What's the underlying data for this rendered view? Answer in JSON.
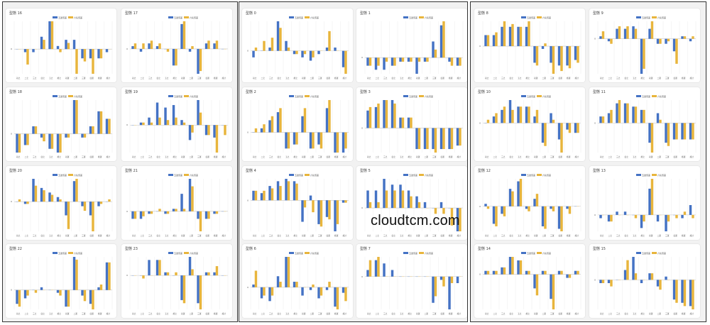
{
  "watermark": "cloudtcm.com",
  "colors": {
    "series1": "#4472c4",
    "series2": "#e8b53c",
    "grid": "#ececec",
    "axis": "#c8c8c8",
    "text": "#555555"
  },
  "legend": [
    "五運值差",
    "六氣值差"
  ],
  "categories": [
    "初之",
    "二之",
    "三之",
    "四之",
    "五之",
    "終之",
    "初運",
    "二運",
    "三運",
    "四運",
    "終運",
    "總計"
  ],
  "chart_data": [
    {
      "type": "bar",
      "title": "型態 16",
      "legend": [
        "五運值差",
        "六氣值差"
      ],
      "series": [
        {
          "name": "五運值差",
          "values": [
            0,
            -1,
            -1,
            4,
            9,
            1,
            3,
            3,
            -3,
            -3,
            -3,
            -1
          ]
        },
        {
          "name": "六氣值差",
          "values": [
            0,
            -5,
            0,
            3,
            9,
            -1,
            2,
            -8,
            -4,
            -8,
            -3,
            0
          ]
        }
      ]
    },
    {
      "type": "bar",
      "title": "型態 17",
      "legend": [
        "五運值差",
        "六氣值差"
      ],
      "series": [
        {
          "name": "五運值差",
          "values": [
            1,
            -1,
            2,
            1,
            0,
            -6,
            9,
            -1,
            -9,
            2,
            2,
            0
          ]
        },
        {
          "name": "六氣值差",
          "values": [
            2,
            2,
            3,
            2,
            -1,
            -6,
            10,
            1,
            -8,
            3,
            3,
            0
          ]
        }
      ]
    },
    {
      "type": "bar",
      "title": "型態 18",
      "legend": [
        "五運值差",
        "六氣值差"
      ],
      "series": [
        {
          "name": "五運值差",
          "values": [
            -5,
            -3,
            2,
            -1,
            -4,
            -5,
            -1,
            9,
            -1,
            2,
            6,
            4
          ]
        },
        {
          "name": "六氣值差",
          "values": [
            -5,
            -3,
            2,
            -2,
            -4,
            -5,
            -1,
            9,
            -1,
            2,
            6,
            4
          ]
        }
      ]
    },
    {
      "type": "bar",
      "title": "型態 19",
      "legend": [
        "五運值差",
        "六氣值差"
      ],
      "series": [
        {
          "name": "五運值差",
          "values": [
            0,
            1,
            3,
            9,
            7,
            8,
            2,
            -6,
            10,
            -4,
            -5,
            0
          ]
        },
        {
          "name": "六氣值差",
          "values": [
            0,
            1,
            1,
            3,
            2,
            3,
            1,
            -3,
            5,
            -4,
            -11,
            -4
          ]
        }
      ]
    },
    {
      "type": "bar",
      "title": "型態 20",
      "legend": [
        "五運值差",
        "六氣值差"
      ],
      "series": [
        {
          "name": "五運值差",
          "values": [
            0,
            -1,
            10,
            6,
            4,
            2,
            -6,
            9,
            -2,
            -6,
            -2,
            0
          ]
        },
        {
          "name": "六氣值差",
          "values": [
            1,
            -1,
            7,
            5,
            3,
            1,
            -12,
            10,
            -4,
            -13,
            -1,
            1
          ]
        }
      ]
    },
    {
      "type": "bar",
      "title": "型態 21",
      "legend": [
        "五運值差",
        "六氣值差"
      ],
      "series": [
        {
          "name": "五運值差",
          "values": [
            -3,
            -3,
            -1,
            0,
            -1,
            1,
            7,
            13,
            -3,
            -3,
            -1,
            0
          ]
        },
        {
          "name": "六氣值差",
          "values": [
            -3,
            -2,
            -1,
            1,
            -1,
            1,
            1,
            10,
            -8,
            -3,
            -1,
            0
          ]
        }
      ]
    },
    {
      "type": "bar",
      "title": "型態 22",
      "legend": [
        "五運值差",
        "六氣值差"
      ],
      "series": [
        {
          "name": "五運值差",
          "values": [
            -5,
            -3,
            0,
            1,
            0,
            -1,
            -6,
            12,
            -2,
            -5,
            1,
            10
          ]
        },
        {
          "name": "六氣值差",
          "values": [
            -6,
            -2,
            -1,
            0,
            0,
            -2,
            -6,
            11,
            -4,
            -7,
            2,
            10
          ]
        }
      ]
    },
    {
      "type": "bar",
      "title": "型態 23",
      "legend": [
        "五運值差",
        "六氣值差"
      ],
      "series": [
        {
          "name": "五運值差",
          "values": [
            0,
            0,
            5,
            5,
            1,
            0,
            -8,
            6,
            -9,
            1,
            1,
            0
          ]
        },
        {
          "name": "六氣值差",
          "values": [
            0,
            -1,
            0,
            5,
            1,
            1,
            -9,
            2,
            -11,
            1,
            3,
            0
          ]
        }
      ]
    },
    {
      "type": "bar",
      "title": "型態 0",
      "legend": [
        "五運值差",
        "六氣值差"
      ],
      "series": [
        {
          "name": "五運值差",
          "values": [
            -2,
            0,
            1,
            9,
            3,
            -1,
            -2,
            -3,
            -1,
            1,
            1,
            -5
          ]
        },
        {
          "name": "六氣值差",
          "values": [
            1,
            3,
            4,
            7,
            1,
            -1,
            -1,
            -2,
            0,
            6,
            0,
            -7
          ]
        }
      ]
    },
    {
      "type": "bar",
      "title": "型態 1",
      "legend": [
        "五運值差",
        "六氣值差"
      ],
      "series": [
        {
          "name": "五運值差",
          "values": [
            -2,
            -3,
            -3,
            -2,
            -1,
            -1,
            -4,
            -1,
            4,
            8,
            -1,
            -2
          ]
        },
        {
          "name": "六氣值差",
          "values": [
            -2,
            -2,
            -1,
            -2,
            -1,
            -1,
            -1,
            -1,
            2,
            9,
            -2,
            -2
          ]
        }
      ]
    },
    {
      "type": "bar",
      "title": "型態 2",
      "legend": [
        "五運值差",
        "六氣值差"
      ],
      "series": [
        {
          "name": "五運值差",
          "values": [
            0,
            1,
            3,
            5,
            -4,
            -3,
            4,
            -4,
            -3,
            6,
            -5,
            -5
          ]
        },
        {
          "name": "六氣值差",
          "values": [
            1,
            2,
            4,
            6,
            -4,
            -3,
            6,
            -4,
            -4,
            8,
            -5,
            -4
          ]
        }
      ]
    },
    {
      "type": "bar",
      "title": "型態 3",
      "legend": [
        "五運值差",
        "六氣值差"
      ],
      "series": [
        {
          "name": "五運值差",
          "values": [
            5,
            6,
            8,
            8,
            3,
            3,
            -6,
            -6,
            -6,
            -6,
            -6,
            -5
          ]
        },
        {
          "name": "六氣值差",
          "values": [
            6,
            7,
            8,
            7,
            3,
            3,
            -6,
            -6,
            -7,
            -6,
            -6,
            -5
          ]
        }
      ]
    },
    {
      "type": "bar",
      "title": "型態 4",
      "legend": [
        "五運值差",
        "六氣值差"
      ],
      "series": [
        {
          "name": "五運值差",
          "values": [
            4,
            3,
            6,
            8,
            9,
            8,
            -9,
            2,
            -10,
            -7,
            -13,
            -1
          ]
        },
        {
          "name": "六氣值差",
          "values": [
            4,
            4,
            5,
            6,
            8,
            7,
            -3,
            -5,
            -11,
            -8,
            -10,
            -1
          ]
        }
      ]
    },
    {
      "type": "bar",
      "title": "型態 5",
      "legend": [
        "五運值差",
        "六氣值差"
      ],
      "series": [
        {
          "name": "五運值差",
          "values": [
            3,
            3,
            5,
            4,
            4,
            3,
            2,
            1,
            0,
            1,
            0,
            -4
          ]
        },
        {
          "name": "六氣值差",
          "values": [
            1,
            1,
            3,
            3,
            3,
            2,
            1,
            0,
            -1,
            -1,
            -3,
            -4
          ]
        }
      ]
    },
    {
      "type": "bar",
      "title": "型態 6",
      "legend": [
        "五運值差",
        "六氣值差"
      ],
      "series": [
        {
          "name": "五運值差",
          "values": [
            1,
            -4,
            -5,
            4,
            11,
            2,
            -3,
            -1,
            -4,
            -1,
            -7,
            -2
          ]
        },
        {
          "name": "六氣值差",
          "values": [
            6,
            -3,
            -3,
            2,
            11,
            2,
            0,
            1,
            -3,
            2,
            -8,
            -5
          ]
        }
      ]
    },
    {
      "type": "bar",
      "title": "型態 7",
      "legend": [
        "五運值差",
        "六氣值差"
      ],
      "series": [
        {
          "name": "五運值差",
          "values": [
            2,
            5,
            4,
            2,
            0,
            0,
            0,
            0,
            -8,
            -1,
            -10,
            -2
          ]
        },
        {
          "name": "六氣值差",
          "values": [
            5,
            6,
            0,
            0,
            0,
            0,
            0,
            0,
            -6,
            -3,
            -2,
            0
          ]
        }
      ]
    },
    {
      "type": "bar",
      "title": "型態 8",
      "legend": [
        "五運值差",
        "六氣值差"
      ],
      "series": [
        {
          "name": "五運值差",
          "values": [
            4,
            4,
            7,
            7,
            7,
            7,
            -6,
            -1,
            -6,
            -7,
            -7,
            -5
          ]
        },
        {
          "name": "六氣值差",
          "values": [
            4,
            5,
            9,
            8,
            7,
            9,
            -7,
            1,
            -10,
            -9,
            -8,
            -6
          ]
        }
      ]
    },
    {
      "type": "bar",
      "title": "型態 9",
      "legend": [
        "五運值差",
        "六氣值差"
      ],
      "series": [
        {
          "name": "五運值差",
          "values": [
            1,
            -1,
            4,
            4,
            5,
            -14,
            4,
            -2,
            -2,
            -5,
            1,
            -1
          ]
        },
        {
          "name": "六氣值差",
          "values": [
            3,
            -2,
            5,
            5,
            4,
            -12,
            7,
            -2,
            -1,
            -10,
            1,
            1
          ]
        }
      ]
    },
    {
      "type": "bar",
      "title": "型態 10",
      "legend": [
        "五運值差",
        "六氣值差"
      ],
      "series": [
        {
          "name": "五運值差",
          "values": [
            0,
            2,
            4,
            7,
            5,
            5,
            2,
            -6,
            3,
            -5,
            -2,
            -3
          ]
        },
        {
          "name": "六氣值差",
          "values": [
            1,
            3,
            5,
            4,
            5,
            5,
            4,
            -7,
            1,
            -9,
            -3,
            -3
          ]
        }
      ]
    },
    {
      "type": "bar",
      "title": "型態 11",
      "legend": [
        "五運值差",
        "六氣值差"
      ],
      "series": [
        {
          "name": "五運值差",
          "values": [
            2,
            3,
            6,
            6,
            5,
            4,
            -6,
            3,
            -6,
            -5,
            -5,
            -5
          ]
        },
        {
          "name": "六氣值差",
          "values": [
            2,
            4,
            7,
            6,
            5,
            4,
            -9,
            1,
            -7,
            -5,
            -5,
            -5
          ]
        }
      ]
    },
    {
      "type": "bar",
      "title": "型態 12",
      "legend": [
        "五運值差",
        "六氣值差"
      ],
      "series": [
        {
          "name": "五運值差",
          "values": [
            1,
            -7,
            -3,
            7,
            10,
            -1,
            3,
            -8,
            -1,
            -9,
            -1,
            0
          ]
        },
        {
          "name": "六氣值差",
          "values": [
            -1,
            -8,
            -4,
            6,
            11,
            -2,
            5,
            -9,
            -2,
            -10,
            -3,
            0
          ]
        }
      ]
    },
    {
      "type": "bar",
      "title": "型態 13",
      "legend": [
        "五運值差",
        "六氣值差"
      ],
      "series": [
        {
          "name": "五運值差",
          "values": [
            -1,
            -2,
            1,
            1,
            0,
            -4,
            8,
            -2,
            -5,
            0,
            -1,
            3
          ]
        },
        {
          "name": "六氣值差",
          "values": [
            0,
            -2,
            0,
            0,
            -1,
            -2,
            11,
            0,
            -2,
            -1,
            1,
            -1
          ]
        }
      ]
    },
    {
      "type": "bar",
      "title": "型態 14",
      "legend": [
        "五運值差",
        "六氣值差"
      ],
      "series": [
        {
          "name": "五運值差",
          "values": [
            1,
            1,
            2,
            5,
            4,
            1,
            -4,
            1,
            -7,
            1,
            -1,
            1
          ]
        },
        {
          "name": "六氣值差",
          "values": [
            1,
            1,
            2,
            5,
            4,
            1,
            -6,
            1,
            -10,
            1,
            -1,
            1
          ]
        }
      ]
    },
    {
      "type": "bar",
      "title": "型態 15",
      "legend": [
        "五運值差",
        "六氣值差"
      ],
      "series": [
        {
          "name": "五運值差",
          "values": [
            -1,
            -1,
            0,
            3,
            7,
            -1,
            2,
            -2,
            1,
            -6,
            -7,
            -8
          ]
        },
        {
          "name": "六氣值差",
          "values": [
            -1,
            -2,
            0,
            6,
            2,
            0,
            2,
            -3,
            0,
            -7,
            -8,
            -9
          ]
        }
      ]
    }
  ]
}
